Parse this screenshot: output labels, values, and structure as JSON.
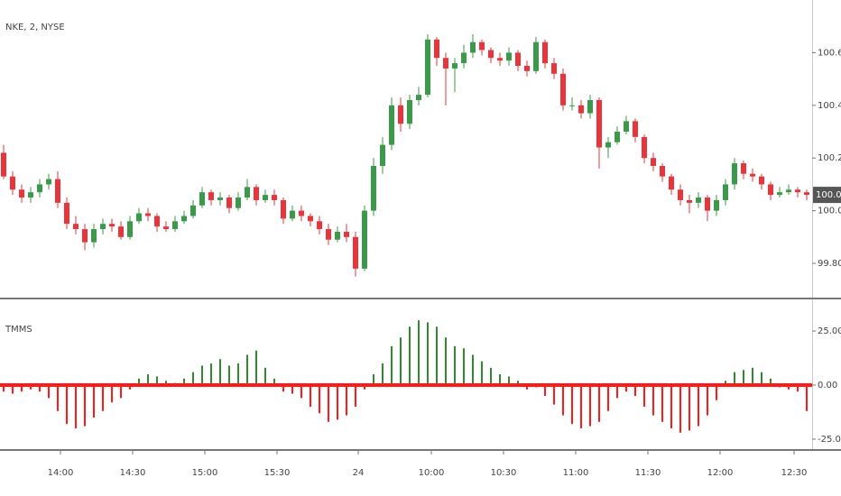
{
  "chart_data": [
    {
      "type": "candlestick",
      "title": "NKE, 2, NYSE",
      "up_color": "#3a9a4a",
      "down_color": "#e8343a",
      "xlim": [
        -0.4,
        89.6
      ],
      "ylim": [
        99.67,
        100.8
      ],
      "yticks": [
        {
          "value": 99.8,
          "label": "99.80"
        },
        {
          "value": 100,
          "label": "100.00"
        },
        {
          "value": 100.2,
          "label": "100.20"
        },
        {
          "value": 100.4,
          "label": "100.40"
        },
        {
          "value": 100.6,
          "label": "100.60"
        }
      ],
      "last_price": 100.06,
      "ohlc": [
        [
          100.22,
          100.25,
          100.12,
          100.13
        ],
        [
          100.13,
          100.15,
          100.06,
          100.08
        ],
        [
          100.08,
          100.1,
          100.03,
          100.05
        ],
        [
          100.05,
          100.09,
          100.03,
          100.07
        ],
        [
          100.07,
          100.12,
          100.05,
          100.1
        ],
        [
          100.1,
          100.14,
          100.08,
          100.12
        ],
        [
          100.12,
          100.15,
          100.01,
          100.03
        ],
        [
          100.03,
          100.05,
          99.93,
          99.95
        ],
        [
          99.95,
          99.98,
          99.91,
          99.93
        ],
        [
          99.93,
          99.95,
          99.85,
          99.88
        ],
        [
          99.88,
          99.95,
          99.86,
          99.93
        ],
        [
          99.93,
          99.97,
          99.91,
          99.95
        ],
        [
          99.95,
          99.97,
          99.92,
          99.94
        ],
        [
          99.94,
          99.96,
          99.89,
          99.9
        ],
        [
          99.9,
          99.98,
          99.89,
          99.96
        ],
        [
          99.96,
          100.01,
          99.95,
          99.99
        ],
        [
          99.99,
          100.01,
          99.96,
          99.98
        ],
        [
          99.98,
          99.99,
          99.92,
          99.94
        ],
        [
          99.94,
          99.96,
          99.92,
          99.93
        ],
        [
          99.93,
          99.98,
          99.92,
          99.96
        ],
        [
          99.96,
          100.0,
          99.95,
          99.98
        ],
        [
          99.98,
          100.04,
          99.97,
          100.02
        ],
        [
          100.02,
          100.09,
          100.01,
          100.07
        ],
        [
          100.07,
          100.08,
          100.02,
          100.04
        ],
        [
          100.04,
          100.07,
          100.02,
          100.05
        ],
        [
          100.05,
          100.06,
          99.99,
          100.01
        ],
        [
          100.01,
          100.07,
          100.0,
          100.05
        ],
        [
          100.05,
          100.12,
          100.04,
          100.09
        ],
        [
          100.09,
          100.1,
          100.02,
          100.04
        ],
        [
          100.04,
          100.08,
          100.03,
          100.06
        ],
        [
          100.06,
          100.08,
          100.02,
          100.04
        ],
        [
          100.04,
          100.05,
          99.95,
          99.97
        ],
        [
          99.97,
          100.02,
          99.96,
          100.0
        ],
        [
          100.0,
          100.02,
          99.96,
          99.98
        ],
        [
          99.98,
          99.99,
          99.94,
          99.96
        ],
        [
          99.96,
          99.98,
          99.91,
          99.93
        ],
        [
          99.93,
          99.95,
          99.87,
          99.89
        ],
        [
          99.89,
          99.94,
          99.88,
          99.92
        ],
        [
          99.92,
          99.95,
          99.88,
          99.9
        ],
        [
          99.9,
          99.92,
          99.75,
          99.78
        ],
        [
          99.78,
          100.02,
          99.77,
          100.0
        ],
        [
          100.0,
          100.2,
          99.98,
          100.17
        ],
        [
          100.17,
          100.28,
          100.14,
          100.25
        ],
        [
          100.25,
          100.43,
          100.23,
          100.4
        ],
        [
          100.4,
          100.43,
          100.3,
          100.33
        ],
        [
          100.33,
          100.44,
          100.31,
          100.42
        ],
        [
          100.42,
          100.47,
          100.4,
          100.44
        ],
        [
          100.44,
          100.67,
          100.43,
          100.65
        ],
        [
          100.65,
          100.66,
          100.55,
          100.58
        ],
        [
          100.58,
          100.6,
          100.4,
          100.54
        ],
        [
          100.54,
          100.58,
          100.45,
          100.56
        ],
        [
          100.56,
          100.63,
          100.54,
          100.6
        ],
        [
          100.6,
          100.67,
          100.58,
          100.64
        ],
        [
          100.64,
          100.65,
          100.59,
          100.61
        ],
        [
          100.61,
          100.62,
          100.56,
          100.58
        ],
        [
          100.58,
          100.6,
          100.55,
          100.57
        ],
        [
          100.57,
          100.62,
          100.55,
          100.6
        ],
        [
          100.6,
          100.61,
          100.53,
          100.55
        ],
        [
          100.55,
          100.57,
          100.51,
          100.53
        ],
        [
          100.53,
          100.66,
          100.52,
          100.64
        ],
        [
          100.64,
          100.65,
          100.54,
          100.56
        ],
        [
          100.56,
          100.58,
          100.5,
          100.52
        ],
        [
          100.52,
          100.54,
          100.38,
          100.4
        ],
        [
          100.4,
          100.43,
          100.38,
          100.4
        ],
        [
          100.4,
          100.42,
          100.35,
          100.37
        ],
        [
          100.37,
          100.44,
          100.35,
          100.42
        ],
        [
          100.42,
          100.43,
          100.16,
          100.24
        ],
        [
          100.24,
          100.28,
          100.2,
          100.26
        ],
        [
          100.26,
          100.32,
          100.25,
          100.3
        ],
        [
          100.3,
          100.36,
          100.29,
          100.34
        ],
        [
          100.34,
          100.35,
          100.26,
          100.28
        ],
        [
          100.28,
          100.29,
          100.18,
          100.2
        ],
        [
          100.2,
          100.22,
          100.15,
          100.17
        ],
        [
          100.17,
          100.18,
          100.11,
          100.13
        ],
        [
          100.13,
          100.14,
          100.06,
          100.08
        ],
        [
          100.08,
          100.1,
          100.02,
          100.04
        ],
        [
          100.04,
          100.06,
          99.99,
          100.03
        ],
        [
          100.03,
          100.07,
          100.01,
          100.05
        ],
        [
          100.05,
          100.06,
          99.96,
          100.0
        ],
        [
          100.0,
          100.06,
          99.98,
          100.04
        ],
        [
          100.04,
          100.12,
          100.02,
          100.1
        ],
        [
          100.1,
          100.2,
          100.08,
          100.18
        ],
        [
          100.18,
          100.19,
          100.12,
          100.14
        ],
        [
          100.14,
          100.16,
          100.11,
          100.13
        ],
        [
          100.13,
          100.14,
          100.08,
          100.1
        ],
        [
          100.1,
          100.11,
          100.04,
          100.06
        ],
        [
          100.06,
          100.09,
          100.05,
          100.07
        ],
        [
          100.07,
          100.1,
          100.06,
          100.08
        ],
        [
          100.08,
          100.09,
          100.05,
          100.07
        ],
        [
          100.07,
          100.08,
          100.04,
          100.06
        ]
      ]
    },
    {
      "type": "bar",
      "title": "TMMS",
      "positive_color": "#2e8b2e",
      "negative_color": "#ff1a1a",
      "xlim": [
        -0.4,
        89.6
      ],
      "ylim": [
        -29.6,
        39.2
      ],
      "yticks": [
        {
          "value": -25,
          "label": "-25.00"
        },
        {
          "value": 0,
          "label": "0.00"
        },
        {
          "value": 25,
          "label": "25.00"
        }
      ],
      "xticks": [
        {
          "value": 6.3,
          "label": "14:00"
        },
        {
          "value": 14.3,
          "label": "14:30"
        },
        {
          "value": 22.3,
          "label": "15:00"
        },
        {
          "value": 30.3,
          "label": "15:30"
        },
        {
          "value": 39.3,
          "label": "24"
        },
        {
          "value": 47.4,
          "label": "10:00"
        },
        {
          "value": 55.4,
          "label": "10:30"
        },
        {
          "value": 63.4,
          "label": "11:00"
        },
        {
          "value": 71.4,
          "label": "11:30"
        },
        {
          "value": 79.4,
          "label": "12:00"
        },
        {
          "value": 87.6,
          "label": "12:30"
        }
      ],
      "values": [
        -3,
        -4,
        -3,
        -2,
        -3,
        -6,
        -12,
        -18,
        -20,
        -19,
        -15,
        -12,
        -8,
        -6,
        -2,
        3,
        5,
        4,
        2,
        1,
        3,
        6,
        9,
        10,
        12,
        9,
        10,
        14,
        16,
        8,
        3,
        -3,
        -4,
        -6,
        -10,
        -13,
        -17,
        -16,
        -14,
        -10,
        -2,
        5,
        10,
        18,
        22,
        27,
        30,
        29,
        27,
        22,
        18,
        17,
        14,
        11,
        8,
        5,
        4,
        2,
        -2,
        -1,
        -5,
        -9,
        -14,
        -18,
        -20,
        -19,
        -17,
        -12,
        -6,
        -3,
        -5,
        -10,
        -14,
        -17,
        -20,
        -22,
        -21,
        -19,
        -14,
        -7,
        2,
        6,
        7,
        8,
        6,
        3,
        -1,
        -2,
        -3,
        -12
      ]
    }
  ]
}
